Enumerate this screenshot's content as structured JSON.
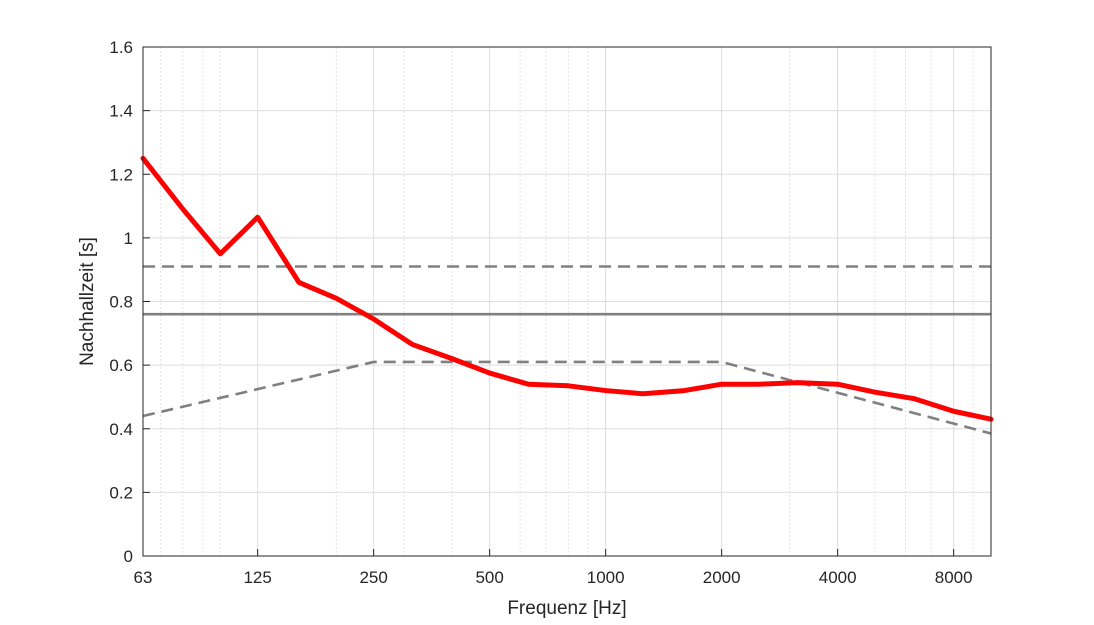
{
  "chart_data": {
    "type": "line",
    "xlabel": "Frequenz [Hz]",
    "ylabel": "Nachhallzeit [s]",
    "xscale": "log",
    "xlim": [
      63,
      10000
    ],
    "ylim": [
      0,
      1.6
    ],
    "x_ticks": [
      63,
      125,
      250,
      500,
      1000,
      2000,
      4000,
      8000
    ],
    "x_tick_labels": [
      "63",
      "125",
      "250",
      "500",
      "1000",
      "2000",
      "4000",
      "8000"
    ],
    "y_ticks": [
      0,
      0.2,
      0.4,
      0.6,
      0.8,
      1,
      1.2,
      1.4,
      1.6
    ],
    "y_tick_labels": [
      "0",
      "0.2",
      "0.4",
      "0.6",
      "0.8",
      "1",
      "1.2",
      "1.4",
      "1.6"
    ],
    "grid": true,
    "minor_grid": true,
    "series": [
      {
        "color": "#ff0000",
        "style": "solid",
        "x": [
          63,
          80,
          100,
          125,
          160,
          200,
          250,
          315,
          400,
          500,
          630,
          800,
          1000,
          1250,
          1600,
          2000,
          2500,
          3150,
          4000,
          5000,
          6300,
          8000,
          10000
        ],
        "y": [
          1.25,
          1.09,
          0.95,
          1.065,
          0.86,
          0.81,
          0.745,
          0.665,
          0.62,
          0.575,
          0.54,
          0.535,
          0.52,
          0.51,
          0.52,
          0.54,
          0.54,
          0.545,
          0.54,
          0.515,
          0.495,
          0.455,
          0.43
        ]
      },
      {
        "color": "#808080",
        "style": "solid",
        "x": [
          63,
          10000
        ],
        "y": [
          0.76,
          0.76
        ]
      },
      {
        "color": "#808080",
        "style": "dashed",
        "x": [
          63,
          10000
        ],
        "y": [
          0.91,
          0.91
        ]
      },
      {
        "color": "#808080",
        "style": "dashed",
        "x": [
          63,
          250,
          2000,
          10000
        ],
        "y": [
          0.44,
          0.61,
          0.61,
          0.385
        ]
      }
    ]
  }
}
